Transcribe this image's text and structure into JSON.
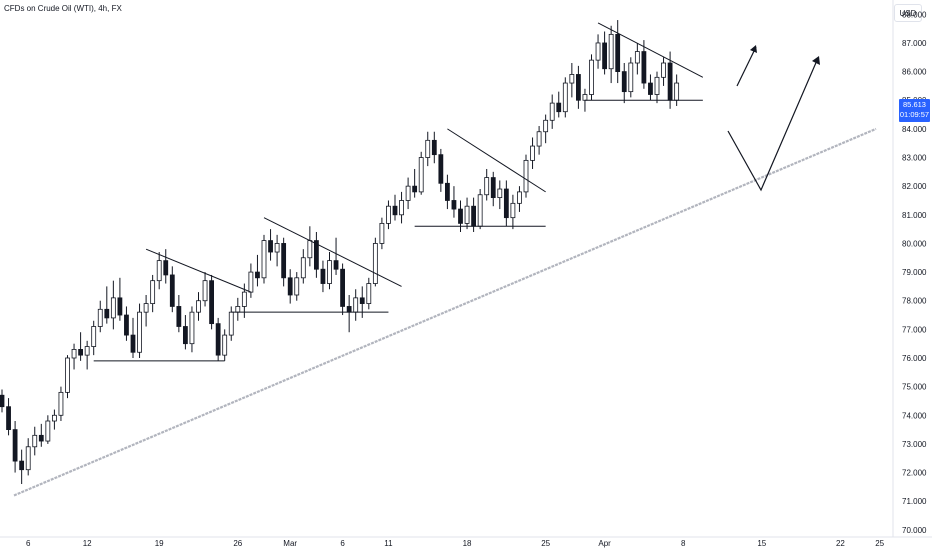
{
  "header": {
    "symbol_title": "CFDs on Crude Oil (WTI), 4h, FX",
    "currency": "USD"
  },
  "price_badge": {
    "price": "85.613",
    "countdown": "01:09:57",
    "color": "#2962ff"
  },
  "colors": {
    "up": "#131722",
    "down": "#131722",
    "trendline": "#9598a1",
    "drawing": "#131722",
    "axis_line": "#e0e3eb"
  },
  "chart_data": {
    "type": "candlestick",
    "title": "CFDs on Crude Oil (WTI), 4h, FX",
    "ylabel": "USD",
    "ylim": [
      69.75,
      88.5
    ],
    "y_ticks": [
      "88.000",
      "87.000",
      "86.000",
      "85.000",
      "84.000",
      "83.000",
      "82.000",
      "81.000",
      "80.000",
      "79.000",
      "78.000",
      "77.000",
      "76.000",
      "75.000",
      "74.000",
      "73.000",
      "72.000",
      "71.000",
      "70.000"
    ],
    "x_ticks": [
      {
        "label": "6",
        "bar": 4
      },
      {
        "label": "12",
        "bar": 13
      },
      {
        "label": "19",
        "bar": 24
      },
      {
        "label": "26",
        "bar": 36
      },
      {
        "label": "Mar",
        "bar": 44
      },
      {
        "label": "6",
        "bar": 52
      },
      {
        "label": "11",
        "bar": 59
      },
      {
        "label": "18",
        "bar": 71
      },
      {
        "label": "25",
        "bar": 83
      },
      {
        "label": "Apr",
        "bar": 92
      },
      {
        "label": "8",
        "bar": 104
      },
      {
        "label": "15",
        "bar": 116
      },
      {
        "label": "22",
        "bar": 128
      },
      {
        "label": "25",
        "bar": 134
      }
    ],
    "candles": [
      [
        74.7,
        74.9,
        74.1,
        74.3
      ],
      [
        74.3,
        74.6,
        73.3,
        73.5
      ],
      [
        73.5,
        73.8,
        72.0,
        72.4
      ],
      [
        72.4,
        72.8,
        71.6,
        72.1
      ],
      [
        72.1,
        73.2,
        71.9,
        72.9
      ],
      [
        72.9,
        73.6,
        72.6,
        73.3
      ],
      [
        73.3,
        73.7,
        72.9,
        73.1
      ],
      [
        73.1,
        74.0,
        73.0,
        73.8
      ],
      [
        73.8,
        74.2,
        73.5,
        74.0
      ],
      [
        74.0,
        75.0,
        73.8,
        74.8
      ],
      [
        74.8,
        76.1,
        74.6,
        76.0
      ],
      [
        76.0,
        76.5,
        75.6,
        76.3
      ],
      [
        76.3,
        76.9,
        75.9,
        76.1
      ],
      [
        76.1,
        76.6,
        75.6,
        76.4
      ],
      [
        76.4,
        77.3,
        76.1,
        77.1
      ],
      [
        77.1,
        78.0,
        76.9,
        77.7
      ],
      [
        77.7,
        78.5,
        77.2,
        77.4
      ],
      [
        77.4,
        78.7,
        77.0,
        78.1
      ],
      [
        78.1,
        78.8,
        77.3,
        77.5
      ],
      [
        77.5,
        77.8,
        76.6,
        76.8
      ],
      [
        76.8,
        77.4,
        76.0,
        76.2
      ],
      [
        76.2,
        77.9,
        76.0,
        77.6
      ],
      [
        77.6,
        78.2,
        77.1,
        77.9
      ],
      [
        77.9,
        78.9,
        77.6,
        78.7
      ],
      [
        78.7,
        79.7,
        78.4,
        79.4
      ],
      [
        79.4,
        79.8,
        78.6,
        78.9
      ],
      [
        78.9,
        79.2,
        77.6,
        77.8
      ],
      [
        77.8,
        78.2,
        76.9,
        77.1
      ],
      [
        77.1,
        77.5,
        76.3,
        76.5
      ],
      [
        76.5,
        77.8,
        76.2,
        77.6
      ],
      [
        77.6,
        78.3,
        77.3,
        78.0
      ],
      [
        78.0,
        79.0,
        77.8,
        78.7
      ],
      [
        78.7,
        78.9,
        77.0,
        77.2
      ],
      [
        77.2,
        77.4,
        75.9,
        76.1
      ],
      [
        76.1,
        77.0,
        75.9,
        76.8
      ],
      [
        76.8,
        77.8,
        76.6,
        77.6
      ],
      [
        77.6,
        78.1,
        77.3,
        77.8
      ],
      [
        77.8,
        78.6,
        77.4,
        78.3
      ],
      [
        78.3,
        79.3,
        78.1,
        79.0
      ],
      [
        79.0,
        79.6,
        78.5,
        78.8
      ],
      [
        78.8,
        80.3,
        78.6,
        80.1
      ],
      [
        80.1,
        80.5,
        79.4,
        79.7
      ],
      [
        79.7,
        80.3,
        79.2,
        80.0
      ],
      [
        80.0,
        80.2,
        78.5,
        78.8
      ],
      [
        78.8,
        79.1,
        77.9,
        78.2
      ],
      [
        78.2,
        79.0,
        78.0,
        78.8
      ],
      [
        78.8,
        79.8,
        78.6,
        79.5
      ],
      [
        79.5,
        80.6,
        79.2,
        80.1
      ],
      [
        80.1,
        80.4,
        78.8,
        79.1
      ],
      [
        79.1,
        79.4,
        78.3,
        78.6
      ],
      [
        78.6,
        79.7,
        78.4,
        79.4
      ],
      [
        79.4,
        80.2,
        78.9,
        79.1
      ],
      [
        79.1,
        79.3,
        77.5,
        77.8
      ],
      [
        77.8,
        78.2,
        76.9,
        77.6
      ],
      [
        77.6,
        78.4,
        77.3,
        78.1
      ],
      [
        78.1,
        78.5,
        77.4,
        77.9
      ],
      [
        77.9,
        78.8,
        77.7,
        78.6
      ],
      [
        78.6,
        80.2,
        78.5,
        80.0
      ],
      [
        80.0,
        80.9,
        79.8,
        80.7
      ],
      [
        80.7,
        81.5,
        80.5,
        81.3
      ],
      [
        81.3,
        81.7,
        80.8,
        81.0
      ],
      [
        81.0,
        81.8,
        80.7,
        81.5
      ],
      [
        81.5,
        82.3,
        81.2,
        82.0
      ],
      [
        82.0,
        82.6,
        81.6,
        81.8
      ],
      [
        81.8,
        83.2,
        81.7,
        83.0
      ],
      [
        83.0,
        83.9,
        82.7,
        83.6
      ],
      [
        83.6,
        83.9,
        82.8,
        83.1
      ],
      [
        83.1,
        83.3,
        81.8,
        82.1
      ],
      [
        82.1,
        82.4,
        81.2,
        81.5
      ],
      [
        81.5,
        82.0,
        80.9,
        81.2
      ],
      [
        81.2,
        81.5,
        80.4,
        80.7
      ],
      [
        80.7,
        81.6,
        80.5,
        81.3
      ],
      [
        81.3,
        81.6,
        80.4,
        80.6
      ],
      [
        80.6,
        81.9,
        80.5,
        81.7
      ],
      [
        81.7,
        82.6,
        81.5,
        82.3
      ],
      [
        82.3,
        82.5,
        81.3,
        81.6
      ],
      [
        81.6,
        82.2,
        81.2,
        81.9
      ],
      [
        81.9,
        82.2,
        80.6,
        80.9
      ],
      [
        80.9,
        81.7,
        80.5,
        81.4
      ],
      [
        81.4,
        82.0,
        81.1,
        81.8
      ],
      [
        81.8,
        83.1,
        81.6,
        82.9
      ],
      [
        82.9,
        83.7,
        82.6,
        83.4
      ],
      [
        83.4,
        84.1,
        83.1,
        83.9
      ],
      [
        83.9,
        84.5,
        83.5,
        84.3
      ],
      [
        84.3,
        85.2,
        84.0,
        84.9
      ],
      [
        84.9,
        85.3,
        84.4,
        84.6
      ],
      [
        84.6,
        85.8,
        84.4,
        85.6
      ],
      [
        85.6,
        86.3,
        85.1,
        85.9
      ],
      [
        85.9,
        86.2,
        84.7,
        85.0
      ],
      [
        85.0,
        85.4,
        84.6,
        85.2
      ],
      [
        85.2,
        86.6,
        85.0,
        86.4
      ],
      [
        86.4,
        87.3,
        86.1,
        87.0
      ],
      [
        87.0,
        87.4,
        85.9,
        86.1
      ],
      [
        86.1,
        87.6,
        85.6,
        87.3
      ],
      [
        87.3,
        87.8,
        85.6,
        86.0
      ],
      [
        86.0,
        86.3,
        84.9,
        85.3
      ],
      [
        85.3,
        86.5,
        85.1,
        86.3
      ],
      [
        86.3,
        87.0,
        85.9,
        86.7
      ],
      [
        86.7,
        87.1,
        85.4,
        85.6
      ],
      [
        85.6,
        85.9,
        85.0,
        85.2
      ],
      [
        85.2,
        86.0,
        84.9,
        85.8
      ],
      [
        85.8,
        86.5,
        85.5,
        86.3
      ],
      [
        86.3,
        86.7,
        84.7,
        85.0
      ],
      [
        85.0,
        85.9,
        84.8,
        85.6
      ]
    ],
    "annotations": [
      {
        "type": "support",
        "bars": [
          14,
          34
        ],
        "y": 75.9
      },
      {
        "type": "resistance",
        "bars": [
          22,
          38
        ],
        "from": 79.8,
        "to": 78.3
      },
      {
        "type": "support",
        "bars": [
          35,
          59
        ],
        "y": 77.6
      },
      {
        "type": "resistance",
        "bars": [
          40,
          61
        ],
        "from": 80.9,
        "to": 78.5
      },
      {
        "type": "support",
        "bars": [
          63,
          83
        ],
        "y": 80.6
      },
      {
        "type": "resistance",
        "bars": [
          68,
          83
        ],
        "from": 84.0,
        "to": 81.8
      },
      {
        "type": "support",
        "bars": [
          89,
          107
        ],
        "y": 85.0
      },
      {
        "type": "resistance",
        "bars": [
          91,
          107
        ],
        "from": 87.7,
        "to": 85.8
      }
    ]
  }
}
